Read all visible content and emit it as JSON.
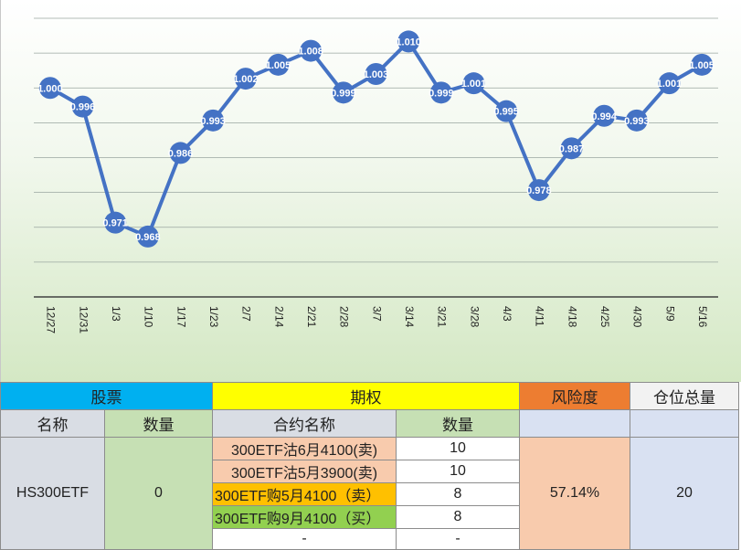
{
  "chart_data": {
    "type": "line",
    "categories": [
      "12/27",
      "12/31",
      "1/3",
      "1/10",
      "1/17",
      "1/23",
      "2/7",
      "2/14",
      "2/21",
      "2/28",
      "3/7",
      "3/14",
      "3/21",
      "3/28",
      "4/3",
      "4/11",
      "4/18",
      "4/25",
      "4/30",
      "5/9",
      "5/16"
    ],
    "values": [
      1.0,
      0.996,
      0.971,
      0.968,
      0.986,
      0.993,
      1.002,
      1.005,
      1.008,
      0.999,
      1.003,
      1.01,
      0.999,
      1.001,
      0.995,
      0.978,
      0.987,
      0.994,
      0.993,
      1.001,
      1.005
    ],
    "labels": [
      "1.000",
      "0.996",
      "0.971",
      "0.968",
      "0.986",
      "0.993",
      "1.002",
      "1.005",
      "1.008",
      "0.999",
      "1.003",
      "1.010",
      "0.999",
      "1.001",
      "0.995",
      "0.978",
      "0.987",
      "0.994",
      "0.993",
      "1.001",
      "1.005"
    ],
    "ylim": [
      0.955,
      1.015
    ],
    "grid": true,
    "line_color": "#4472c4",
    "title": "",
    "xlabel": "",
    "ylabel": ""
  },
  "table": {
    "headers": {
      "stock": "股票",
      "option": "期权",
      "risk": "风险度",
      "position": "仓位总量"
    },
    "subheaders": {
      "name": "名称",
      "qty": "数量",
      "contract": "合约名称",
      "contract_qty": "数量"
    },
    "stock_name": "HS300ETF",
    "stock_qty": "0",
    "contracts": [
      {
        "name": "300ETF沽6月4100(卖)",
        "qty": "10"
      },
      {
        "name": "300ETF沽5月3900(卖)",
        "qty": "10"
      },
      {
        "name": "300ETF购5月4100（卖）",
        "qty": "8"
      },
      {
        "name": "300ETF购9月4100（买）",
        "qty": "8"
      },
      {
        "name": "-",
        "qty": "-"
      }
    ],
    "risk_value": "57.14%",
    "position_total": "20",
    "colors": {
      "stock_header": "#00b0f0",
      "option_header": "#ffff00",
      "risk_header": "#ed7d31",
      "peach": "#f8cbad",
      "orange": "#ffc000",
      "light_green": "#92d050"
    }
  }
}
